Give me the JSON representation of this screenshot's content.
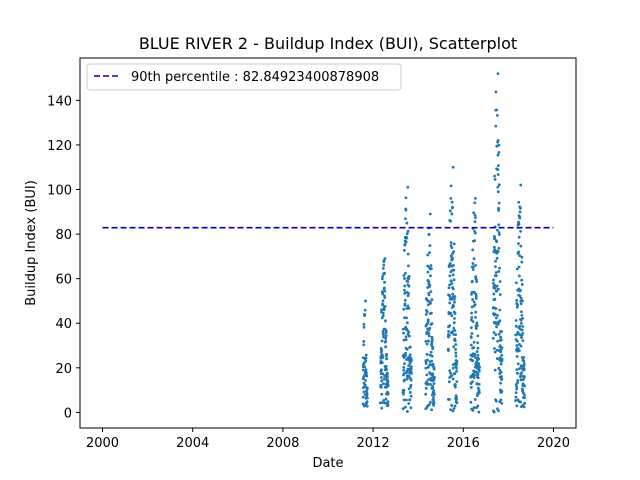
{
  "chart_data": {
    "type": "scatter",
    "title": "BLUE RIVER 2 - Buildup Index (BUI), Scatterplot",
    "xlabel": "Date",
    "ylabel": "Buildup Index (BUI)",
    "xlim": [
      2000,
      2020
    ],
    "ylim": [
      -7,
      159
    ],
    "x_ticks": [
      "2000",
      "2004",
      "2008",
      "2012",
      "2016",
      "2020"
    ],
    "y_ticks": [
      "0",
      "20",
      "40",
      "60",
      "80",
      "100",
      "120",
      "140"
    ],
    "x_tick_values": [
      2000,
      2004,
      2008,
      2012,
      2016,
      2020
    ],
    "y_tick_values": [
      0,
      20,
      40,
      60,
      80,
      100,
      120,
      140
    ],
    "reference_line": {
      "label": "90th percentile : 82.84923400878908",
      "value": 82.84923400878908,
      "x_range": [
        2000,
        2020
      ],
      "color": "#0000bb",
      "style": "dashed"
    },
    "legend": {
      "position": "upper-left"
    },
    "grid": false,
    "point_color": "#1f77b4",
    "series": [
      {
        "season_clusters": [
          {
            "year": 2011,
            "x_start": 2011.55,
            "x_end": 2011.75,
            "y_max": 50,
            "n": 55
          },
          {
            "year": 2012,
            "x_start": 2012.33,
            "x_end": 2012.67,
            "y_max": 69,
            "n": 120
          },
          {
            "year": 2013,
            "x_start": 2013.33,
            "x_end": 2013.7,
            "y_max": 101,
            "n": 130
          },
          {
            "year": 2014,
            "x_start": 2014.33,
            "x_end": 2014.72,
            "y_max": 89,
            "n": 130
          },
          {
            "year": 2015,
            "x_start": 2015.33,
            "x_end": 2015.72,
            "y_max": 110,
            "n": 130
          },
          {
            "year": 2016,
            "x_start": 2016.33,
            "x_end": 2016.72,
            "y_max": 96,
            "n": 130
          },
          {
            "year": 2017,
            "x_start": 2017.33,
            "x_end": 2017.72,
            "y_max": 152,
            "n": 140
          },
          {
            "year": 2018,
            "x_start": 2018.33,
            "x_end": 2018.72,
            "y_max": 102,
            "n": 130
          }
        ]
      }
    ]
  }
}
